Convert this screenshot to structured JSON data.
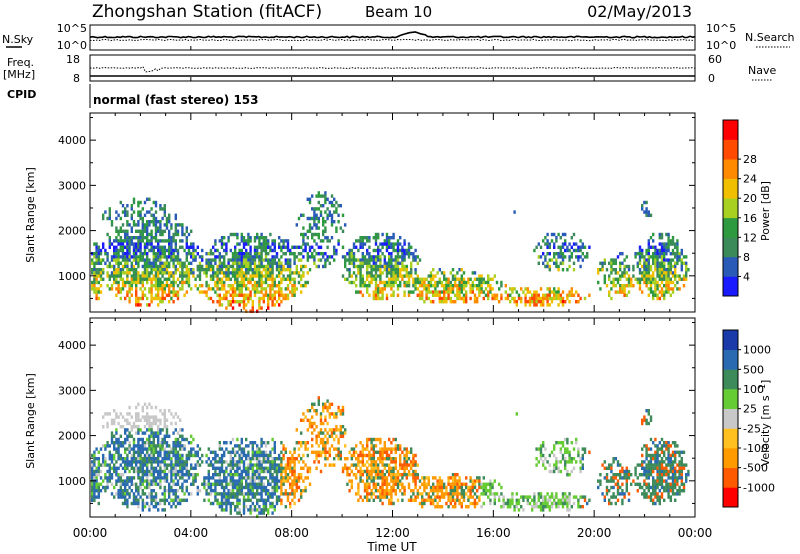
{
  "header": {
    "station": "Zhongshan Station (fitACF)",
    "beam": "Beam 10",
    "date": "02/May/2013"
  },
  "top_panels": {
    "nsky_label": "N.Sky",
    "nsky_ticks": [
      "10^5",
      "10^0"
    ],
    "nsearch_label": "N.Search",
    "nsearch_ticks": [
      "10^5",
      "10^0"
    ],
    "freq_label_1": "Freq.",
    "freq_label_2": "[MHz]",
    "freq_ticks": [
      "18",
      "8"
    ],
    "nave_label": "Nave",
    "nave_ticks": [
      "60",
      "0"
    ],
    "cpid_label": "CPID",
    "cpid_text": "normal (fast stereo) 153"
  },
  "colors": {
    "power": [
      "#1a1aff",
      "#2a5ab8",
      "#3a8a5a",
      "#2e9a40",
      "#a8d020",
      "#f0c000",
      "#ff8a00",
      "#ff4a00",
      "#ff0000"
    ],
    "velocity": [
      "#ff0000",
      "#ff5a00",
      "#ff9a00",
      "#ffc020",
      "#c8c8c8",
      "#66cc33",
      "#3d8a5a",
      "#2a6ab0",
      "#1a3aaa"
    ]
  },
  "chart_data": [
    {
      "type": "heatmap",
      "name": "power",
      "xlabel": "",
      "ylabel": "Slant Range [km]",
      "ylim": [
        200,
        4600
      ],
      "x_ticks": [
        "00:00",
        "04:00",
        "08:00",
        "12:00",
        "16:00",
        "20:00",
        "00:00"
      ],
      "y_ticks": [
        1000,
        2000,
        3000,
        4000
      ],
      "colorbar_label": "Power [dB]",
      "colorbar_ticks": [
        "4",
        "8",
        "12",
        "16",
        "20",
        "24",
        "28"
      ]
    },
    {
      "type": "heatmap",
      "name": "velocity",
      "xlabel": "Time UT",
      "ylabel": "Slant Range [km]",
      "ylim": [
        200,
        4600
      ],
      "x_ticks": [
        "00:00",
        "04:00",
        "08:00",
        "12:00",
        "16:00",
        "20:00",
        "00:00"
      ],
      "y_ticks": [
        1000,
        2000,
        3000,
        4000
      ],
      "colorbar_label": "Velocity [m s^-1]",
      "colorbar_ticks": [
        "-1000",
        "-500",
        "-100",
        "-25",
        "25",
        "100",
        "500",
        "1000"
      ]
    }
  ]
}
